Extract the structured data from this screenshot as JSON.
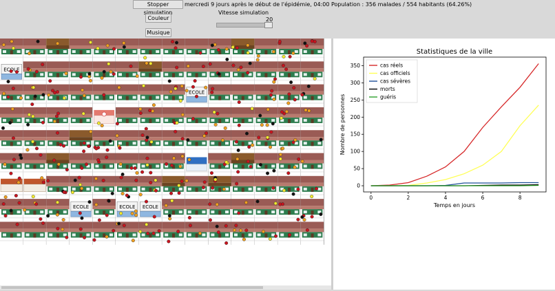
{
  "controls": {
    "stop_label": "Stopper simulation",
    "status_text": "mercredi 9 jours après le début de l'épidémie, 04:00 Population : 356 malades / 554 habitants (64.26%)",
    "color_label": "Couleur",
    "music_label": "Musique",
    "speed_label": "Vitesse simulation",
    "speed_value": "20"
  },
  "city": {
    "school_label": "ECOLE",
    "person_colors": {
      "healthy": "#c8141e",
      "mild": "#f0a020",
      "dead": "#111111",
      "aware": "#f2ea30"
    }
  },
  "chart_data": {
    "type": "line",
    "title": "Statistiques de la ville",
    "xlabel": "Temps en jours",
    "ylabel": "Nombre de personnes",
    "xlim": [
      -0.4,
      9.4
    ],
    "ylim": [
      -18,
      375
    ],
    "xticks": [
      0,
      2,
      4,
      6,
      8
    ],
    "yticks": [
      0,
      50,
      100,
      150,
      200,
      250,
      300,
      350
    ],
    "legend_position": "top-left",
    "series": [
      {
        "name": "cas réels",
        "color": "#d62728",
        "x": [
          0,
          1,
          2,
          3,
          4,
          5,
          6,
          7,
          8,
          9
        ],
        "values": [
          0,
          2,
          9,
          28,
          55,
          100,
          170,
          230,
          287,
          356
        ]
      },
      {
        "name": "cas officiels",
        "color": "#ffff55",
        "x": [
          0,
          1,
          2,
          3,
          4,
          5,
          6,
          7,
          8,
          9
        ],
        "values": [
          0,
          0,
          1,
          8,
          18,
          35,
          60,
          100,
          175,
          235
        ]
      },
      {
        "name": "cas sévères",
        "color": "#1f4f99",
        "x": [
          0,
          1,
          2,
          3,
          4,
          5,
          6,
          7,
          8,
          9
        ],
        "values": [
          0,
          0,
          0,
          0,
          1,
          8,
          8,
          8,
          9,
          9
        ]
      },
      {
        "name": "morts",
        "color": "#000000",
        "x": [
          0,
          1,
          2,
          3,
          4,
          5,
          6,
          7,
          8,
          9
        ],
        "values": [
          0,
          0,
          0,
          0,
          0,
          0,
          1,
          2,
          2,
          3
        ]
      },
      {
        "name": "guéris",
        "color": "#2ca02c",
        "x": [
          0,
          1,
          2,
          3,
          4,
          5,
          6,
          7,
          8,
          9
        ],
        "values": [
          0,
          0,
          0,
          0,
          0,
          0,
          0,
          0,
          0,
          1
        ]
      }
    ]
  }
}
